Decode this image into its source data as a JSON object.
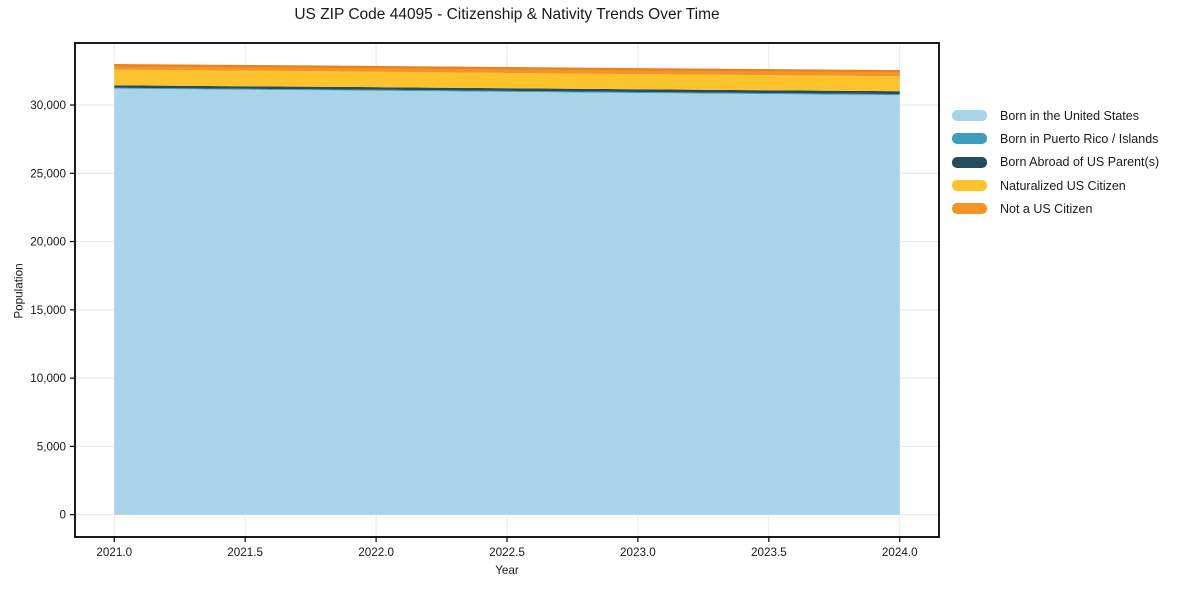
{
  "title": "US ZIP Code 44095 - Citizenship & Nativity Trends Over Time",
  "xlabel": "Year",
  "ylabel": "Population",
  "colors": {
    "background": "#ffffff",
    "grid": "#e8e8e8",
    "spine": "#000000",
    "tick": "#000000",
    "text": "#1a1a1a",
    "stack_top_edge": "#e8821e"
  },
  "chart_data": {
    "type": "area",
    "stacked": true,
    "title": "US ZIP Code 44095 - Citizenship & Nativity Trends Over Time",
    "xlabel": "Year",
    "ylabel": "Population",
    "x": [
      2021,
      2022,
      2023,
      2024
    ],
    "series": [
      {
        "name": "Born in the United States",
        "color": "#a8d3e8",
        "values": [
          31200,
          31050,
          30880,
          30720
        ]
      },
      {
        "name": "Born in Puerto Rico / Islands",
        "color": "#3e9dbc",
        "values": [
          60,
          65,
          70,
          80
        ]
      },
      {
        "name": "Born Abroad of US Parent(s)",
        "color": "#234d5f",
        "values": [
          180,
          190,
          200,
          210
        ]
      },
      {
        "name": "Naturalized US Citizen",
        "color": "#fcc32d",
        "values": [
          1150,
          1130,
          1110,
          1090
        ]
      },
      {
        "name": "Not a US Citizen",
        "color": "#f59423",
        "values": [
          330,
          345,
          360,
          380
        ]
      }
    ],
    "xlim": [
      2020.85,
      2024.15
    ],
    "ylim": [
      -1634,
      34540
    ],
    "x_ticks": {
      "values": [
        2021,
        2021.5,
        2022,
        2022.5,
        2023,
        2023.5,
        2024
      ],
      "labels": [
        "2021.0",
        "2021.5",
        "2022.0",
        "2022.5",
        "2023.0",
        "2023.5",
        "2024.0"
      ]
    },
    "y_ticks": {
      "values": [
        0,
        5000,
        10000,
        15000,
        20000,
        25000,
        30000
      ],
      "labels": [
        "0",
        "5,000",
        "10,000",
        "15,000",
        "20,000",
        "25,000",
        "30,000"
      ]
    },
    "grid": true,
    "legend_position": "center-right"
  }
}
